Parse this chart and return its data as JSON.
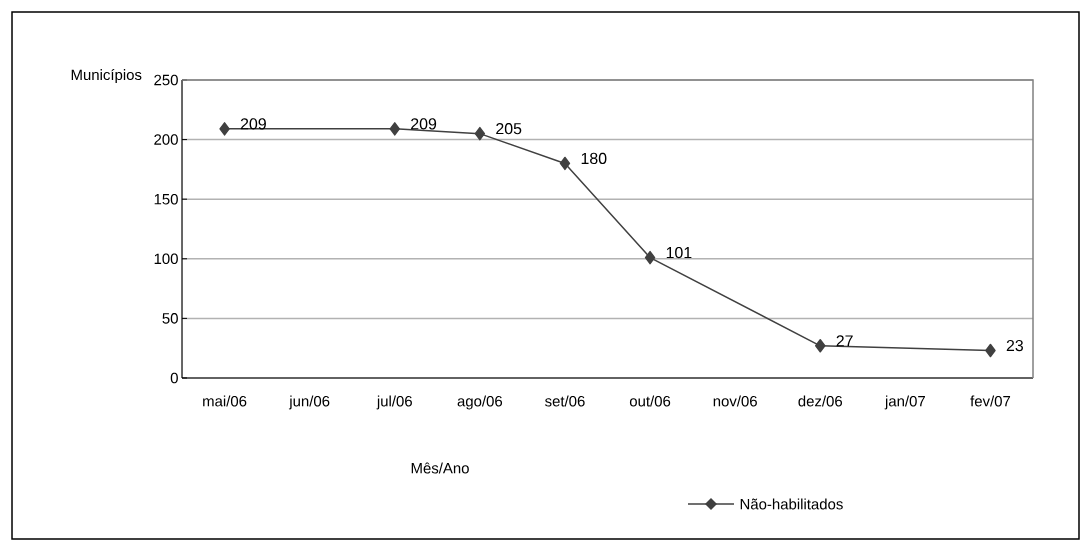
{
  "chart_data": {
    "type": "line",
    "ylabel": "Municípios",
    "xlabel": "Mês/Ano",
    "categories": [
      "mai/06",
      "jun/06",
      "jul/06",
      "ago/06",
      "set/06",
      "out/06",
      "nov/06",
      "dez/06",
      "jan/07",
      "fev/07"
    ],
    "series": [
      {
        "name": "Não-habilitados",
        "color": "#404040",
        "values": [
          209,
          null,
          209,
          205,
          180,
          101,
          null,
          27,
          null,
          23
        ]
      }
    ],
    "ylim": [
      0,
      250
    ],
    "yticks": [
      0,
      50,
      100,
      150,
      200,
      250
    ],
    "grid": "y",
    "legend": "bottom",
    "marker": "diamond",
    "line_style": "solid",
    "data_labels": true
  }
}
